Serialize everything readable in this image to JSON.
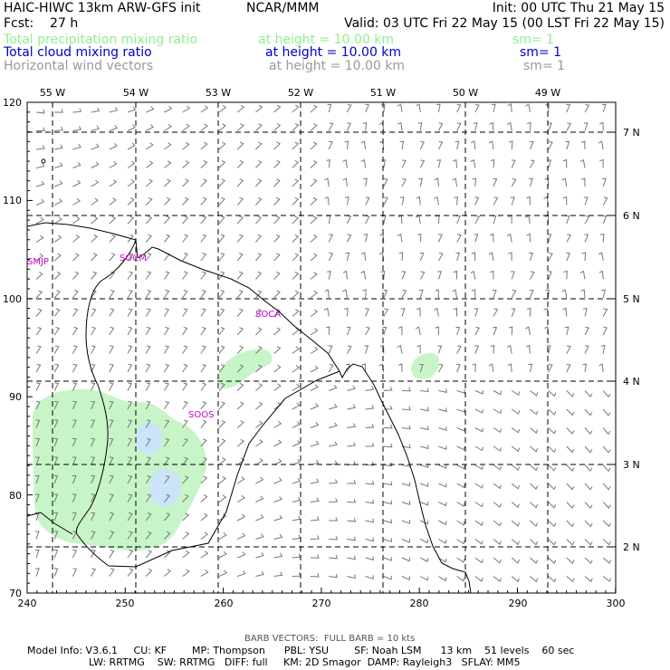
{
  "header": {
    "title": "HAIC-HIWC 13km ARW-GFS init",
    "org": "NCAR/MMM",
    "init": "Init: 00 UTC Thu 21 May 15",
    "fcst": "Fcst:    27 h",
    "valid": "Valid: 03 UTC Fri 22 May 15 (00 LST Fri 22 May 15)",
    "fields": [
      {
        "name": "Total precipitation mixing ratio",
        "height": "at height = 10.00 km",
        "sm": "sm= 1",
        "color": "#90ee90"
      },
      {
        "name": "Total cloud mixing ratio",
        "height": "at height = 10.00 km",
        "sm": "sm= 1",
        "color": "#0000c8"
      },
      {
        "name": "Horizontal wind vectors",
        "height": "at height = 10.00 km",
        "sm": "sm= 1",
        "color": "#999999"
      }
    ]
  },
  "map": {
    "top_axis_labels": [
      "55 W",
      "54 W",
      "53 W",
      "52 W",
      "51 W",
      "50 W",
      "49 W"
    ],
    "right_axis_labels": [
      "7 N",
      "6 N",
      "5 N",
      "4 N",
      "3 N",
      "2 N"
    ],
    "left_axis_labels": [
      "120",
      "110",
      "100",
      "90",
      "80",
      "70"
    ],
    "bottom_axis_labels": [
      "240",
      "250",
      "260",
      "270",
      "280",
      "290",
      "300"
    ],
    "stations": [
      "SMJP",
      "SOCM",
      "SOCA",
      "SOOS"
    ],
    "colors": {
      "precip": "#c8f5c8",
      "cloud": "#cce4f7",
      "coast": "#000000",
      "barb": "#777777",
      "station": "#cc00cc"
    }
  },
  "footer": {
    "barb_note": "BARB VECTORS:  FULL BARB = 10 kts",
    "model_line1": "Model Info: V3.6.1     CU: KF        MP: Thompson      PBL: YSU        SF: Noah LSM      13 km    51 levels    60 sec",
    "model_line2": "LW: RRTMG    SW: RRTMG   DIFF: full     KM: 2D Smagor  DAMP: Rayleigh3   SFLAY: MM5"
  }
}
